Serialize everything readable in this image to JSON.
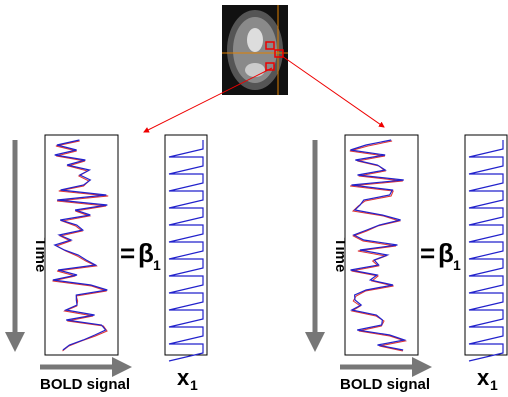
{
  "panels": [
    {
      "time": "Time",
      "bold": "BOLD signal",
      "equals": "=",
      "beta": "β",
      "beta_sub": "1",
      "x": "x",
      "x_sub": "1"
    },
    {
      "time": "Time",
      "bold": "BOLD signal",
      "equals": "=",
      "beta": "β",
      "beta_sub": "1",
      "x": "x",
      "x_sub": "1"
    }
  ]
}
